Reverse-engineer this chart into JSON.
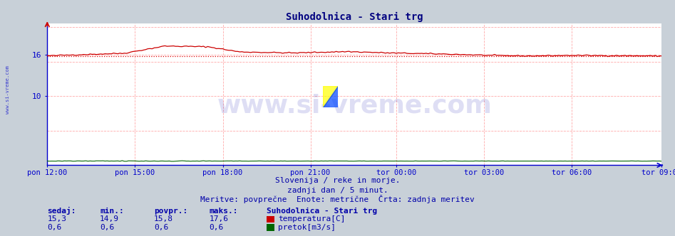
{
  "title": "Suhodolnica - Stari trg",
  "title_color": "#000080",
  "fig_bg_color": "#c8d0d8",
  "plot_bg_color": "#ffffff",
  "grid_color": "#ffaaaa",
  "axis_color": "#0000cc",
  "text_color": "#0000aa",
  "watermark_text": "www.si-vreme.com",
  "watermark_color": "#0000aa",
  "watermark_alpha": 0.13,
  "subtitle1": "Slovenija / reke in morje.",
  "subtitle2": "zadnji dan / 5 minut.",
  "subtitle3": "Meritve: povprečne  Enote: metrične  Črta: zadnja meritev",
  "xlabels": [
    "pon 12:00",
    "pon 15:00",
    "pon 18:00",
    "pon 21:00",
    "tor 00:00",
    "tor 03:00",
    "tor 06:00",
    "tor 09:00"
  ],
  "xtick_fracs": [
    0.0,
    0.143,
    0.286,
    0.429,
    0.571,
    0.714,
    0.857,
    1.0
  ],
  "ylim": [
    0,
    20.5
  ],
  "ytick_vals": [
    10,
    16
  ],
  "ytick_labels": [
    "10",
    "16"
  ],
  "temp_avg_line": 15.8,
  "temp_avg_color": "#dd0000",
  "flow_color": "#006600",
  "temp_color": "#cc0000",
  "legend_title": "Suhodolnica - Stari trg",
  "legend_temp": "temperatura[C]",
  "legend_flow": "pretok[m3/s]",
  "table_headers": [
    "sedaj:",
    "min.:",
    "povpr.:",
    "maks.:"
  ],
  "table_temp": [
    "15,3",
    "14,9",
    "15,8",
    "17,6"
  ],
  "table_flow": [
    "0,6",
    "0,6",
    "0,6",
    "0,6"
  ],
  "n_points": 288,
  "left_label": "www.si-vreme.com"
}
